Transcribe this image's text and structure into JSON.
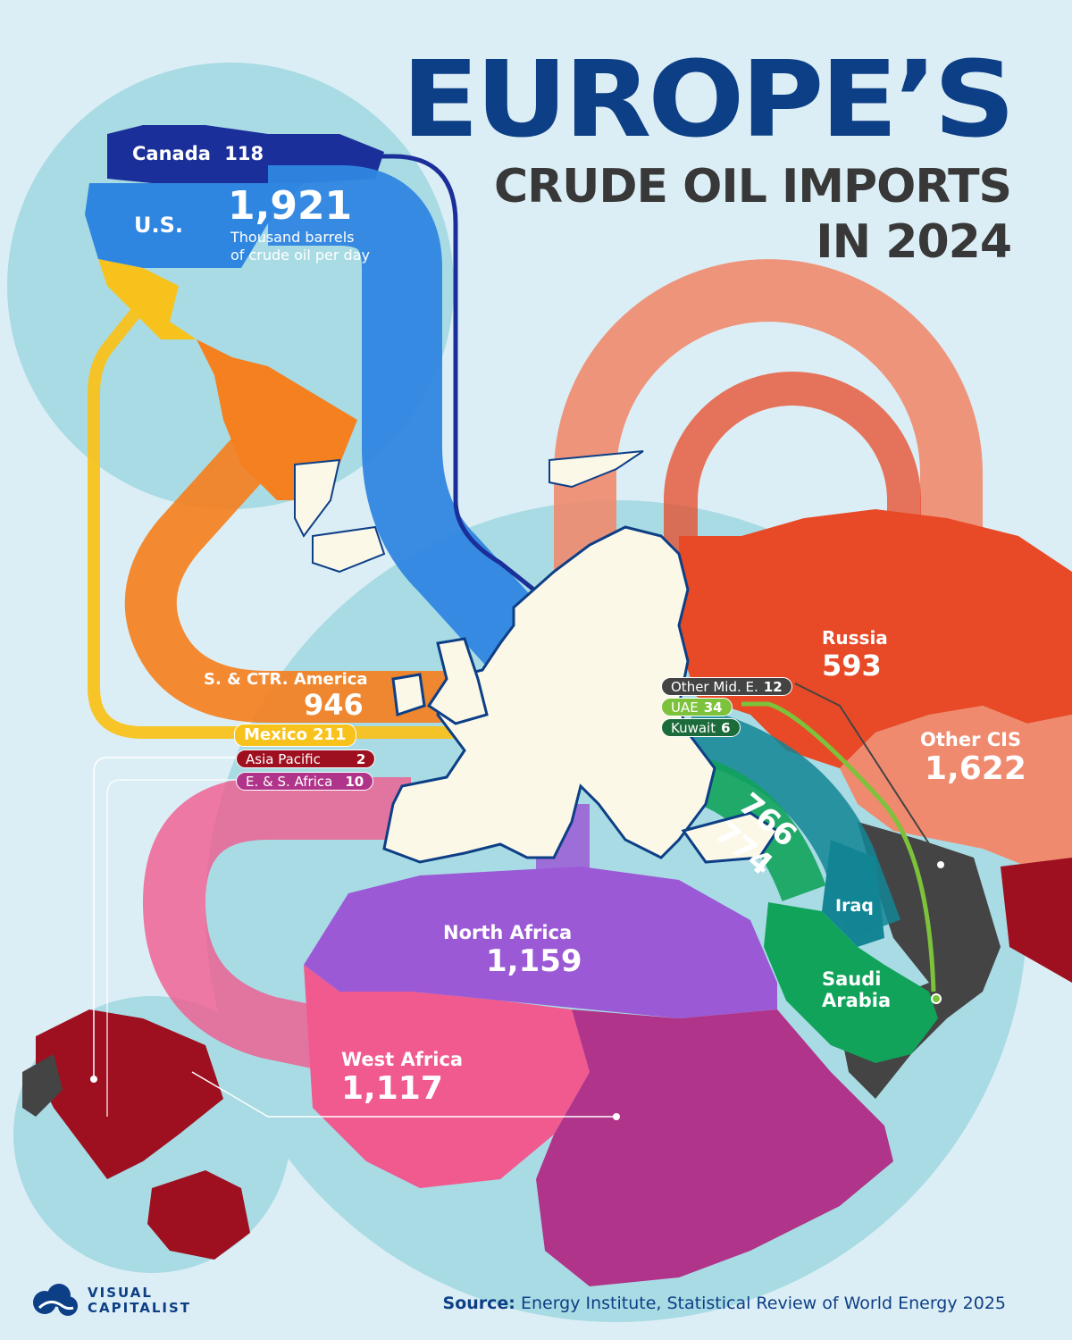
{
  "title": {
    "main": "EUROPE’S",
    "line2": "CRUDE OIL IMPORTS",
    "line3": "IN 2024"
  },
  "unit_note": {
    "line1": "Thousand barrels",
    "line2": "of crude oil per day"
  },
  "regions": {
    "canada": {
      "name": "Canada",
      "value": "118"
    },
    "us": {
      "name": "U.S.",
      "value": "1,921"
    },
    "s_ctr_america": {
      "name": "S. & CTR. America",
      "value": "946"
    },
    "mexico": {
      "name": "Mexico",
      "value": "211"
    },
    "asia_pacific": {
      "name": "Asia Pacific",
      "value": "2"
    },
    "e_s_africa": {
      "name": "E. & S. Africa",
      "value": "10"
    },
    "russia": {
      "name": "Russia",
      "value": "593"
    },
    "other_cis": {
      "name": "Other CIS",
      "value": "1,622"
    },
    "other_mid_e": {
      "name": "Other Mid. E.",
      "value": "12"
    },
    "uae": {
      "name": "UAE",
      "value": "34"
    },
    "kuwait": {
      "name": "Kuwait",
      "value": "6"
    },
    "iraq": {
      "name": "Iraq",
      "value": "766"
    },
    "saudi_arabia": {
      "name": "Saudi",
      "name2": "Arabia",
      "value": "774"
    },
    "north_africa": {
      "name": "North Africa",
      "value": "1,159"
    },
    "west_africa": {
      "name": "West Africa",
      "value": "1,117"
    }
  },
  "colors": {
    "background": "#dceef5",
    "ocean": "#a9dbe4",
    "europe": "#fbf8e8",
    "canada": "#1b2f9a",
    "us": "#2f86e0",
    "s_ctr_america": "#f48020",
    "mexico": "#f8c21c",
    "asia_pacific": "#9e1020",
    "e_s_africa": "#b0348a",
    "russia": "#e84a27",
    "other_cis": "#f08a6e",
    "other_mid_e": "#444444",
    "uae": "#7cc23a",
    "kuwait": "#1c6b3a",
    "iraq": "#138595",
    "saudi_arabia": "#11a35a",
    "north_africa": "#9b59d6",
    "west_africa": "#f05a8f",
    "title": "#0d3f86"
  },
  "footer": {
    "source_label": "Source:",
    "source_text": "Energy Institute, Statistical Review of World Energy 2025",
    "logo_line1": "VISUAL",
    "logo_line2": "CAPITALIST"
  }
}
